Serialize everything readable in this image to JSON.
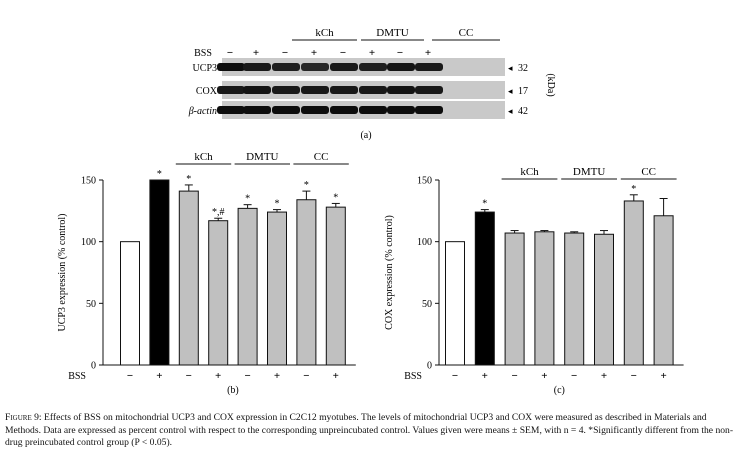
{
  "blot": {
    "treatment_row_label": "BSS",
    "signs": [
      "−",
      "+",
      "−",
      "+",
      "−",
      "+",
      "−",
      "+"
    ],
    "group_labels": [
      "kCh",
      "DMTU",
      "CC"
    ],
    "bands": [
      {
        "name": "UCP3",
        "kda": "32",
        "darkness": [
          0.95,
          0.9,
          0.88,
          0.85,
          0.9,
          0.88,
          0.92,
          0.9
        ]
      },
      {
        "name": "COX",
        "kda": "17",
        "darkness": [
          0.9,
          0.92,
          0.9,
          0.9,
          0.9,
          0.9,
          0.92,
          0.9
        ]
      },
      {
        "name": "β-actin",
        "kda": "42",
        "darkness": [
          0.95,
          0.95,
          0.95,
          0.95,
          0.95,
          0.95,
          0.95,
          0.95
        ]
      }
    ],
    "unit": "(kDa)",
    "panel_label": "(a)"
  },
  "chart_data": [
    {
      "type": "bar",
      "panel_label": "(b)",
      "ylabel": "UCP3 expression (% control)",
      "xlabel": "BSS",
      "ylim": [
        0,
        150
      ],
      "yticks": [
        0,
        50,
        100,
        150
      ],
      "categories": [
        "−",
        "+",
        "−",
        "+",
        "−",
        "+",
        "−",
        "+"
      ],
      "values": [
        100,
        150,
        141,
        117,
        127,
        124,
        134,
        128
      ],
      "errors": [
        0,
        0,
        5,
        2,
        3,
        2,
        7,
        3
      ],
      "fills": [
        "#ffffff",
        "#000000",
        "#c0c0c0",
        "#c0c0c0",
        "#c0c0c0",
        "#c0c0c0",
        "#c0c0c0",
        "#c0c0c0"
      ],
      "significance": [
        "",
        "*",
        "*",
        "*,#",
        "*",
        "*",
        "*",
        "*"
      ],
      "groups": [
        {
          "label": "kCh",
          "start": 2,
          "end": 3
        },
        {
          "label": "DMTU",
          "start": 4,
          "end": 5
        },
        {
          "label": "CC",
          "start": 6,
          "end": 7
        }
      ]
    },
    {
      "type": "bar",
      "panel_label": "(c)",
      "ylabel": "COX expression (% control)",
      "xlabel": "BSS",
      "ylim": [
        0,
        150
      ],
      "yticks": [
        0,
        50,
        100,
        150
      ],
      "categories": [
        "−",
        "+",
        "−",
        "+",
        "−",
        "+",
        "−",
        "+"
      ],
      "values": [
        100,
        124,
        107,
        108,
        107,
        106,
        133,
        121
      ],
      "errors": [
        0,
        2,
        2,
        1,
        1,
        3,
        5,
        14
      ],
      "fills": [
        "#ffffff",
        "#000000",
        "#c0c0c0",
        "#c0c0c0",
        "#c0c0c0",
        "#c0c0c0",
        "#c0c0c0",
        "#c0c0c0"
      ],
      "significance": [
        "",
        "*",
        "",
        "",
        "",
        "",
        "*",
        ""
      ],
      "groups": [
        {
          "label": "kCh",
          "start": 2,
          "end": 3
        },
        {
          "label": "DMTU",
          "start": 4,
          "end": 5
        },
        {
          "label": "CC",
          "start": 6,
          "end": 7
        }
      ]
    }
  ],
  "caption": {
    "label": "Figure 9:",
    "text": "Effects of BSS on mitochondrial UCP3 and COX expression in C2C12 myotubes. The levels of mitochondrial UCP3 and COX were measured as described in Materials and Methods. Data are expressed as percent control with respect to the corresponding unpreincubated control. Values given were means ± SEM, with n = 4. *Significantly different from the non-drug preincubated control group (P < 0.05)."
  }
}
